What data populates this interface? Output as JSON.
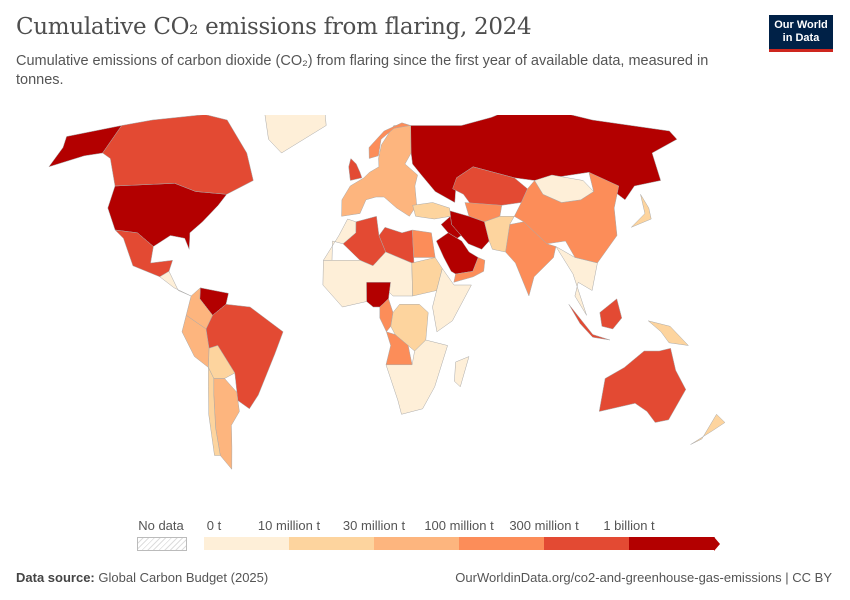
{
  "title": "Cumulative CO₂ emissions from flaring, 2024",
  "subtitle": "Cumulative emissions of carbon dioxide (CO₂) from flaring since the first year of available data, measured in tonnes.",
  "logo": {
    "line1": "Our World",
    "line2": "in Data"
  },
  "legend": {
    "no_data_label": "No data",
    "ticks": [
      "0 t",
      "10 million t",
      "30 million t",
      "100 million t",
      "300 million t",
      "1 billion t"
    ],
    "colors": [
      "#feefd8",
      "#fdd49e",
      "#fdb57e",
      "#fc8d59",
      "#e34a33",
      "#b30000"
    ],
    "no_data_color": "#e8e8e8"
  },
  "map_data": {
    "United States": 5,
    "Alaska": 5,
    "Canada": 4,
    "Greenland": 0,
    "Mexico": 4,
    "Central America": 0,
    "Venezuela": 5,
    "Colombia": 2,
    "Peru": 2,
    "Brazil": 4,
    "Bolivia": 1,
    "Argentina": 2,
    "Chile": 1,
    "Europe": 2,
    "United Kingdom": 4,
    "Norway": 3,
    "Russia": 5,
    "Kazakhstan": 4,
    "Turkmenistan": 3,
    "Iran": 5,
    "Iraq": 5,
    "Saudi Arabia": 5,
    "Oman": 3,
    "Turkey": 1,
    "Algeria": 4,
    "Libya": 4,
    "Egypt": 3,
    "Morocco": 0,
    "Sahel": 0,
    "Sudan": 1,
    "Nigeria": 5,
    "Horn of Africa": 0,
    "Gabon": 3,
    "DR Congo": 1,
    "Angola": 3,
    "Southern Africa": 0,
    "Madagascar": 0,
    "India": 3,
    "Pakistan": 1,
    "China": 3,
    "Mongolia": 0,
    "Southeast Asia": 0,
    "Indonesia": 4,
    "Borneo": 4,
    "Papua": 1,
    "Japan": 1,
    "Australia": 4,
    "New Zealand": 1
  },
  "footer": {
    "source_label": "Data source:",
    "source": "Global Carbon Budget (2025)",
    "url": "OurWorldinData.org/co2-and-greenhouse-gas-emissions | CC BY"
  }
}
